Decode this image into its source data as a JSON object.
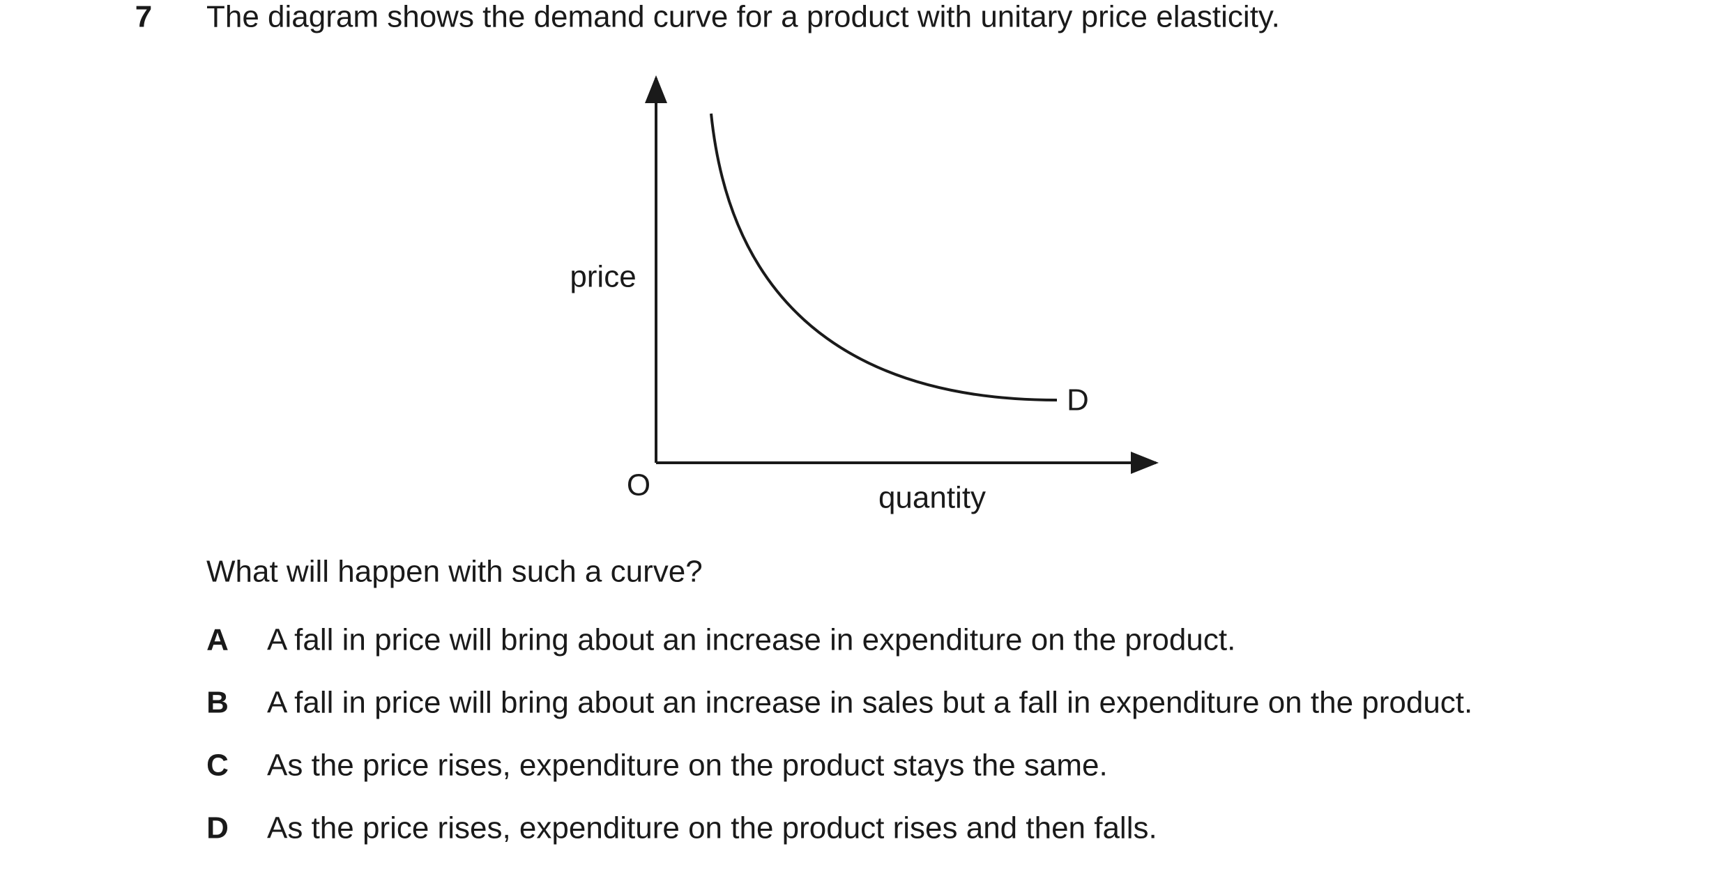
{
  "question": {
    "number": "7",
    "stem": "The diagram shows the demand curve for a product with unitary price elasticity.",
    "prompt": "What will happen with such a curve?"
  },
  "diagram": {
    "y_label": "price",
    "x_label": "quantity",
    "origin": "O",
    "curve_label": "D"
  },
  "options": [
    {
      "letter": "A",
      "text": "A fall in price will bring about an increase in expenditure on the product."
    },
    {
      "letter": "B",
      "text": "A fall in price will bring about an increase in sales but a fall in expenditure on the product."
    },
    {
      "letter": "C",
      "text": "As the price rises, expenditure on the product stays the same."
    },
    {
      "letter": "D",
      "text": "As the price rises, expenditure on the product rises and then falls."
    }
  ]
}
